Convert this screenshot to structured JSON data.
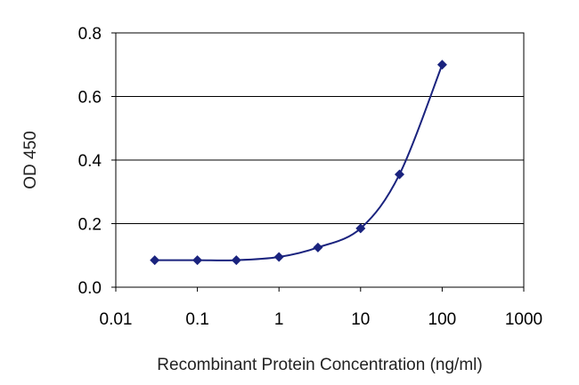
{
  "chart_data": {
    "type": "line",
    "title": "",
    "xlabel": "Recombinant Protein Concentration (ng/ml)",
    "ylabel": "OD 450",
    "xscale": "log",
    "xlim": [
      0.01,
      1000
    ],
    "ylim": [
      0,
      0.8
    ],
    "x_ticks": [
      "0.01",
      "0.1",
      "1",
      "10",
      "100",
      "1000"
    ],
    "y_ticks": [
      "0.0",
      "0.2",
      "0.4",
      "0.6",
      "0.8"
    ],
    "grid": "horizontal",
    "legend": "none",
    "series": [
      {
        "color": "#1a237e",
        "x": [
          0.03,
          0.1,
          0.3,
          1,
          3,
          10,
          30,
          100
        ],
        "y": [
          0.085,
          0.085,
          0.085,
          0.095,
          0.125,
          0.185,
          0.355,
          0.7
        ]
      }
    ]
  }
}
